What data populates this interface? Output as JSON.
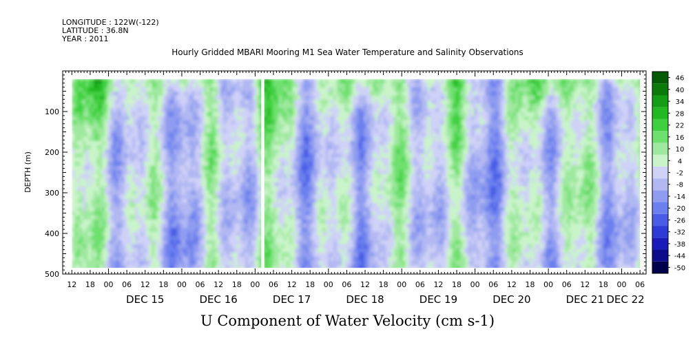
{
  "header": {
    "longitude": "LONGITUDE : 122W(-122)",
    "latitude": "LATITUDE : 36.8N",
    "year": "YEAR : 2011"
  },
  "chart_data": {
    "type": "heatmap",
    "title": "Hourly Gridded MBARI Mooring M1 Sea Water Temperature and Salinity Observations",
    "xlabel": "U Component of Water Velocity (cm s-1)",
    "ylabel": "DEPTH (m)",
    "ylim": [
      500,
      0
    ],
    "y_ticks": [
      100,
      200,
      300,
      400,
      500
    ],
    "x_range": [
      "DEC 14 09:00",
      "DEC 22 08:00"
    ],
    "x_hour_ticks": [
      "12",
      "18",
      "00",
      "06",
      "12",
      "18",
      "00",
      "06",
      "12",
      "18",
      "00",
      "06",
      "12",
      "18",
      "00",
      "06",
      "12",
      "18",
      "00",
      "06",
      "12",
      "18",
      "00",
      "06",
      "12",
      "18",
      "00",
      "06",
      "12",
      "18",
      "00",
      "06"
    ],
    "x_day_labels": [
      "DEC 15",
      "DEC 16",
      "DEC 17",
      "DEC 18",
      "DEC 19",
      "DEC 20",
      "DEC 21",
      "DEC 22"
    ],
    "data_extent": {
      "x_start": "DEC 14 12:00",
      "x_end": "DEC 22 06:00",
      "depth_top": 20,
      "depth_bottom": 485
    },
    "gaps": [
      {
        "x_start": "DEC 17 02:00",
        "x_end": "DEC 17 03:00",
        "depth_top": 20,
        "depth_bottom": 485
      }
    ],
    "colorbar": {
      "levels": [
        -50,
        -44,
        -38,
        -32,
        -26,
        -20,
        -14,
        -8,
        -2,
        4,
        10,
        16,
        22,
        28,
        34,
        40,
        46
      ],
      "tick_labels": [
        "46",
        "40",
        "34",
        "28",
        "22",
        "16",
        "10",
        "4",
        "-2",
        "-8",
        "-14",
        "-20",
        "-26",
        "-32",
        "-38",
        "-44",
        "-50"
      ],
      "colors": [
        "#00004d",
        "#0d0d8c",
        "#1a1ab8",
        "#2e3ad6",
        "#4a5ce6",
        "#6c7fee",
        "#8f9cf0",
        "#b1b8f2",
        "#cfd2f7",
        "#c9f4c9",
        "#9fe89f",
        "#6ee06e",
        "#3fd03f",
        "#22b822",
        "#159c15",
        "#0b7a0b",
        "#055a05"
      ]
    },
    "grid": false,
    "legend": "right"
  }
}
